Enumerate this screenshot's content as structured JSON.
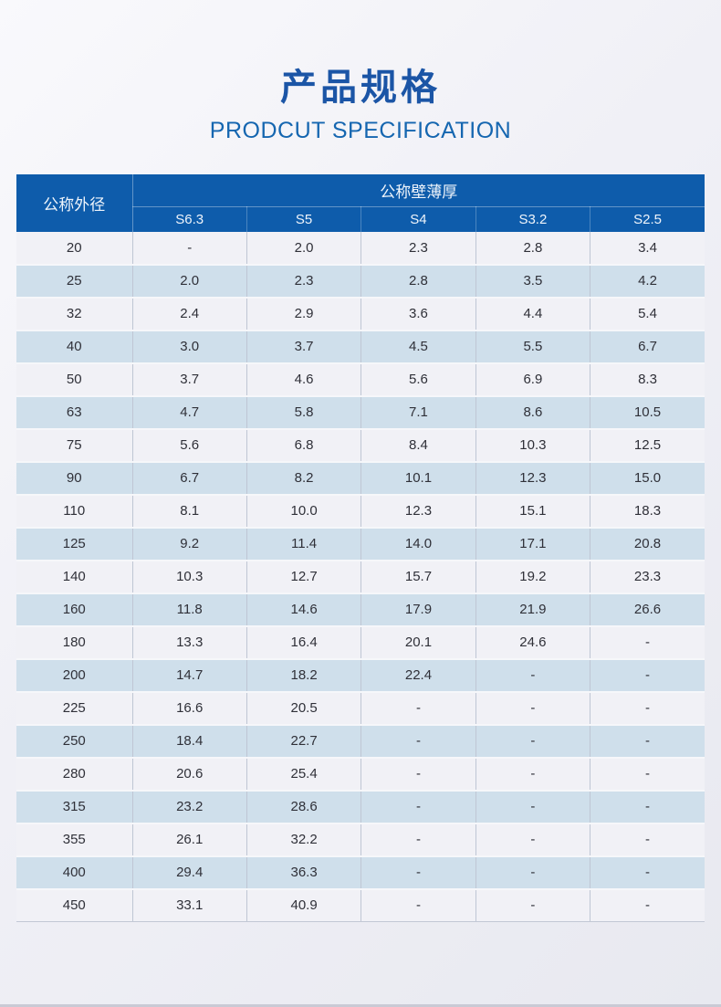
{
  "page": {
    "background_top": "#f9f9fc",
    "background_bottom": "#e8e9f0",
    "accent_blue": "#0e5cab",
    "bottom_edge_color": "#c9cad5"
  },
  "header": {
    "title_cn": "产品规格",
    "title_en": "PRODCUT SPECIFICATION",
    "title_cn_color": "#1b55a6",
    "title_en_color": "#1566b0"
  },
  "table": {
    "corner_header": "公称外径",
    "group_header": "公称壁薄厚",
    "columns": [
      "S6.3",
      "S5",
      "S4",
      "S3.2",
      "S2.5"
    ],
    "header_bg": "#0e5cab",
    "header_text_color": "#eef4fb",
    "row_light_bg": "#f1f1f6",
    "row_blue_bg": "#cfdfeb",
    "cell_text_color": "#2f3038",
    "rows": [
      {
        "diameter": "20",
        "values": [
          "-",
          "2.0",
          "2.3",
          "2.8",
          "3.4"
        ]
      },
      {
        "diameter": "25",
        "values": [
          "2.0",
          "2.3",
          "2.8",
          "3.5",
          "4.2"
        ]
      },
      {
        "diameter": "32",
        "values": [
          "2.4",
          "2.9",
          "3.6",
          "4.4",
          "5.4"
        ]
      },
      {
        "diameter": "40",
        "values": [
          "3.0",
          "3.7",
          "4.5",
          "5.5",
          "6.7"
        ]
      },
      {
        "diameter": "50",
        "values": [
          "3.7",
          "4.6",
          "5.6",
          "6.9",
          "8.3"
        ]
      },
      {
        "diameter": "63",
        "values": [
          "4.7",
          "5.8",
          "7.1",
          "8.6",
          "10.5"
        ]
      },
      {
        "diameter": "75",
        "values": [
          "5.6",
          "6.8",
          "8.4",
          "10.3",
          "12.5"
        ]
      },
      {
        "diameter": "90",
        "values": [
          "6.7",
          "8.2",
          "10.1",
          "12.3",
          "15.0"
        ]
      },
      {
        "diameter": "110",
        "values": [
          "8.1",
          "10.0",
          "12.3",
          "15.1",
          "18.3"
        ]
      },
      {
        "diameter": "125",
        "values": [
          "9.2",
          "11.4",
          "14.0",
          "17.1",
          "20.8"
        ]
      },
      {
        "diameter": "140",
        "values": [
          "10.3",
          "12.7",
          "15.7",
          "19.2",
          "23.3"
        ]
      },
      {
        "diameter": "160",
        "values": [
          "11.8",
          "14.6",
          "17.9",
          "21.9",
          "26.6"
        ]
      },
      {
        "diameter": "180",
        "values": [
          "13.3",
          "16.4",
          "20.1",
          "24.6",
          "-"
        ]
      },
      {
        "diameter": "200",
        "values": [
          "14.7",
          "18.2",
          "22.4",
          "-",
          "-"
        ]
      },
      {
        "diameter": "225",
        "values": [
          "16.6",
          "20.5",
          "-",
          "-",
          "-"
        ]
      },
      {
        "diameter": "250",
        "values": [
          "18.4",
          "22.7",
          "-",
          "-",
          "-"
        ]
      },
      {
        "diameter": "280",
        "values": [
          "20.6",
          "25.4",
          "-",
          "-",
          "-"
        ]
      },
      {
        "diameter": "315",
        "values": [
          "23.2",
          "28.6",
          "-",
          "-",
          "-"
        ]
      },
      {
        "diameter": "355",
        "values": [
          "26.1",
          "32.2",
          "-",
          "-",
          "-"
        ]
      },
      {
        "diameter": "400",
        "values": [
          "29.4",
          "36.3",
          "-",
          "-",
          "-"
        ]
      },
      {
        "diameter": "450",
        "values": [
          "33.1",
          "40.9",
          "-",
          "-",
          "-"
        ]
      }
    ]
  }
}
